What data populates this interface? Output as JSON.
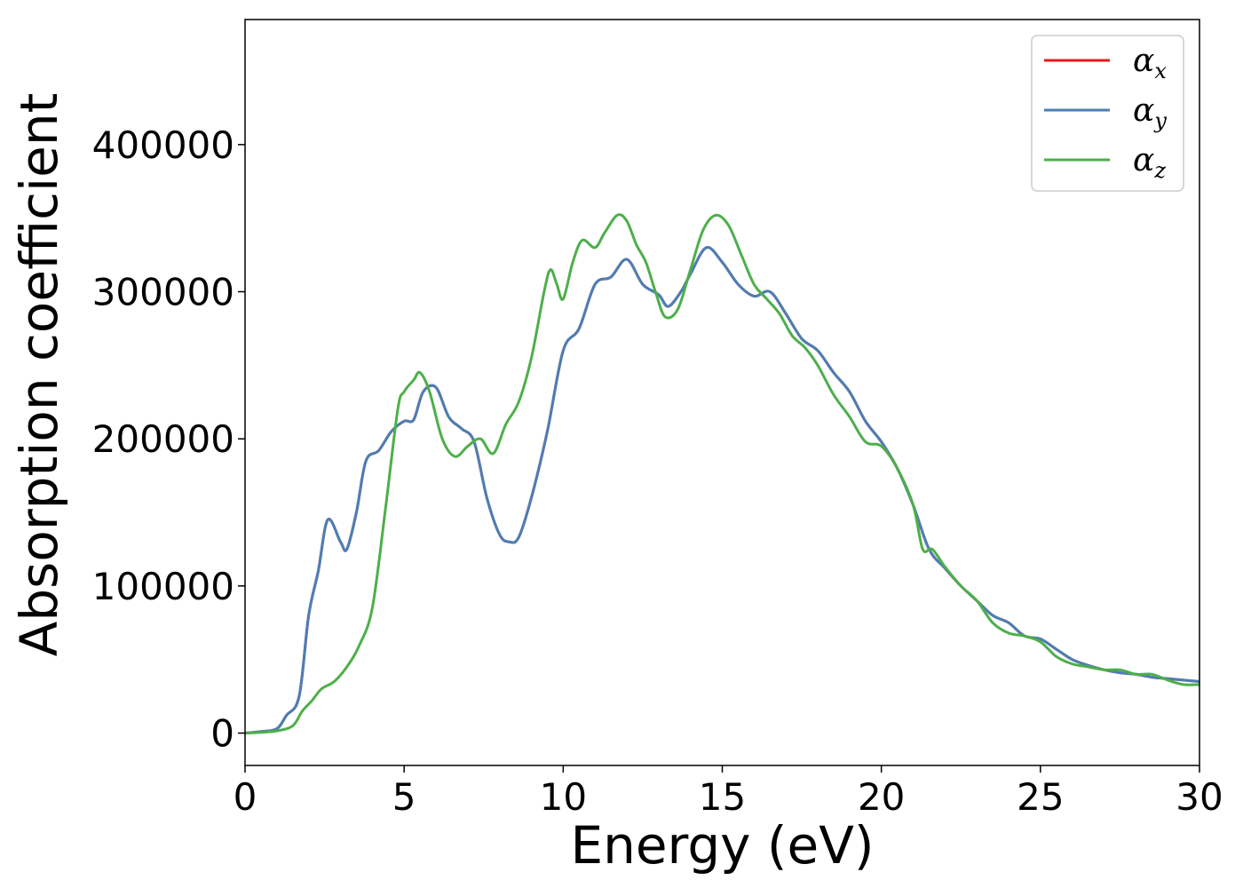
{
  "chart_data": {
    "type": "line",
    "xlabel": "Energy (eV)",
    "ylabel": "Absorption coefficient",
    "xlim": [
      0,
      30
    ],
    "ylim": [
      -22000,
      485000
    ],
    "xticks": [
      0,
      5,
      10,
      15,
      20,
      25,
      30
    ],
    "xtick_labels": [
      "0",
      "5",
      "10",
      "15",
      "20",
      "25",
      "30"
    ],
    "yticks": [
      0,
      100000,
      200000,
      300000,
      400000
    ],
    "ytick_labels": [
      "0",
      "100000",
      "200000",
      "300000",
      "400000"
    ],
    "grid": false,
    "legend_position": "top-right",
    "series": [
      {
        "name": "α_x",
        "legend_main": "α",
        "legend_sub": "x",
        "color": "#e41a1c",
        "x": [
          0,
          0.5,
          1,
          1.3,
          1.7,
          2,
          2.3,
          2.6,
          3,
          3.2,
          3.5,
          3.8,
          4.2,
          4.6,
          5,
          5.3,
          5.6,
          6,
          6.4,
          6.8,
          7.2,
          7.6,
          8,
          8.3,
          8.6,
          9,
          9.5,
          10,
          10.5,
          11,
          11.5,
          12,
          12.5,
          13,
          13.3,
          13.7,
          14,
          14.5,
          15,
          15.5,
          16,
          16.5,
          17,
          17.5,
          18,
          18.5,
          19,
          19.5,
          20,
          20.5,
          21,
          21.5,
          22,
          22.5,
          23,
          23.5,
          24,
          24.5,
          25,
          25.5,
          26,
          26.5,
          27,
          27.5,
          28,
          28.5,
          29,
          29.5,
          30
        ],
        "y": [
          0,
          1000,
          3000,
          12000,
          25000,
          80000,
          110000,
          145000,
          130000,
          125000,
          150000,
          185000,
          192000,
          205000,
          212000,
          213000,
          232000,
          235000,
          215000,
          207000,
          198000,
          160000,
          135000,
          130000,
          133000,
          160000,
          205000,
          260000,
          275000,
          305000,
          310000,
          322000,
          305000,
          298000,
          290000,
          300000,
          312000,
          330000,
          320000,
          305000,
          297000,
          300000,
          285000,
          268000,
          260000,
          245000,
          232000,
          212000,
          198000,
          180000,
          155000,
          125000,
          112000,
          100000,
          90000,
          80000,
          75000,
          66000,
          64000,
          57000,
          50000,
          46000,
          43000,
          41000,
          40000,
          38000,
          37000,
          36000,
          35000
        ]
      },
      {
        "name": "α_y",
        "legend_main": "α",
        "legend_sub": "y",
        "color": "#4a7fb5",
        "x": [
          0,
          0.5,
          1,
          1.3,
          1.7,
          2,
          2.3,
          2.6,
          3,
          3.2,
          3.5,
          3.8,
          4.2,
          4.6,
          5,
          5.3,
          5.6,
          6,
          6.4,
          6.8,
          7.2,
          7.6,
          8,
          8.3,
          8.6,
          9,
          9.5,
          10,
          10.5,
          11,
          11.5,
          12,
          12.5,
          13,
          13.3,
          13.7,
          14,
          14.5,
          15,
          15.5,
          16,
          16.5,
          17,
          17.5,
          18,
          18.5,
          19,
          19.5,
          20,
          20.5,
          21,
          21.5,
          22,
          22.5,
          23,
          23.5,
          24,
          24.5,
          25,
          25.5,
          26,
          26.5,
          27,
          27.5,
          28,
          28.5,
          29,
          29.5,
          30
        ],
        "y": [
          0,
          1000,
          3000,
          12000,
          25000,
          80000,
          110000,
          145000,
          130000,
          125000,
          150000,
          185000,
          192000,
          205000,
          212000,
          213000,
          232000,
          235000,
          215000,
          207000,
          198000,
          160000,
          135000,
          130000,
          133000,
          160000,
          205000,
          260000,
          275000,
          305000,
          310000,
          322000,
          305000,
          298000,
          290000,
          300000,
          312000,
          330000,
          320000,
          305000,
          297000,
          300000,
          285000,
          268000,
          260000,
          245000,
          232000,
          212000,
          198000,
          180000,
          155000,
          125000,
          112000,
          100000,
          90000,
          80000,
          75000,
          66000,
          64000,
          57000,
          50000,
          46000,
          43000,
          41000,
          40000,
          38000,
          37000,
          36000,
          35000
        ]
      },
      {
        "name": "α_z",
        "legend_main": "α",
        "legend_sub": "z",
        "color": "#4daf4a",
        "x": [
          0,
          0.5,
          1,
          1.5,
          1.8,
          2.1,
          2.4,
          2.8,
          3.2,
          3.6,
          4,
          4.4,
          4.8,
          5,
          5.3,
          5.5,
          5.8,
          6.2,
          6.6,
          7,
          7.4,
          7.8,
          8.2,
          8.6,
          9,
          9.4,
          9.6,
          9.8,
          10,
          10.3,
          10.6,
          11,
          11.3,
          11.7,
          12,
          12.3,
          12.6,
          12.9,
          13.2,
          13.6,
          14,
          14.4,
          14.8,
          15.2,
          15.6,
          16,
          16.4,
          16.8,
          17.2,
          17.6,
          18,
          18.5,
          19,
          19.5,
          20,
          20.5,
          21,
          21.3,
          21.6,
          22,
          22.5,
          23,
          23.5,
          24,
          24.5,
          25,
          25.5,
          26,
          26.5,
          27,
          27.5,
          28,
          28.5,
          29,
          29.5,
          30
        ],
        "y": [
          0,
          500,
          1500,
          5000,
          15000,
          22000,
          30000,
          35000,
          45000,
          60000,
          85000,
          150000,
          220000,
          232000,
          240000,
          245000,
          232000,
          200000,
          188000,
          195000,
          200000,
          190000,
          210000,
          225000,
          255000,
          300000,
          315000,
          305000,
          295000,
          320000,
          335000,
          330000,
          340000,
          352000,
          348000,
          332000,
          320000,
          300000,
          283000,
          288000,
          315000,
          342000,
          352000,
          345000,
          325000,
          305000,
          295000,
          285000,
          270000,
          262000,
          250000,
          230000,
          215000,
          198000,
          195000,
          180000,
          155000,
          125000,
          125000,
          113000,
          100000,
          90000,
          75000,
          68000,
          66000,
          62000,
          52000,
          47000,
          45000,
          43000,
          43000,
          40000,
          40000,
          36000,
          33000,
          33000
        ]
      }
    ]
  }
}
